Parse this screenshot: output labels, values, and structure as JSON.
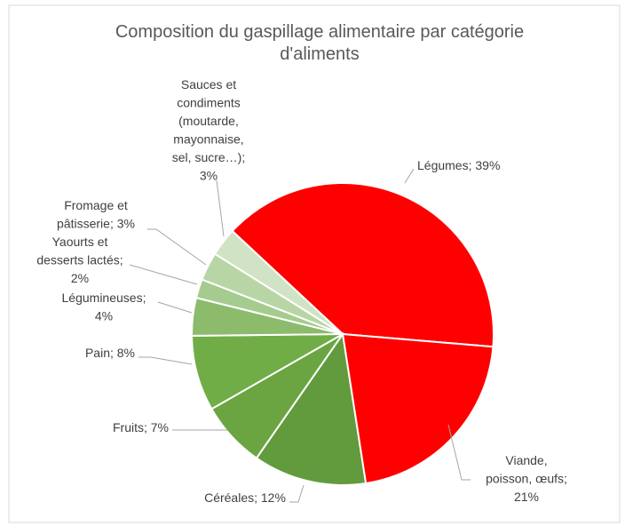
{
  "chart_data": {
    "type": "pie",
    "title": "Composition du gaspillage alimentaire par catégorie\nd'aliments",
    "values": [
      39,
      21,
      12,
      7,
      8,
      4,
      2,
      3,
      3
    ],
    "value_labels": [
      "Légumes; 39%",
      "Viande,\npoisson, œufs;\n21%",
      "Céréales; 12%",
      "Fruits; 7%",
      "Pain; 8%",
      "Légumineuses;\n4%",
      "Yaourts et\ndesserts lactés;\n2%",
      "Fromage et\npâtisserie; 3%",
      "Sauces et\ncondiments\n(moutarde,\nmayonnaise,\nsel, sucre…);\n3%"
    ],
    "colors": [
      "#ff0000",
      "#ff0000",
      "#629b3d",
      "#6aa542",
      "#70ad47",
      "#8cbb6c",
      "#a6cb8e",
      "#b8d6a5",
      "#d0e3c5"
    ]
  }
}
